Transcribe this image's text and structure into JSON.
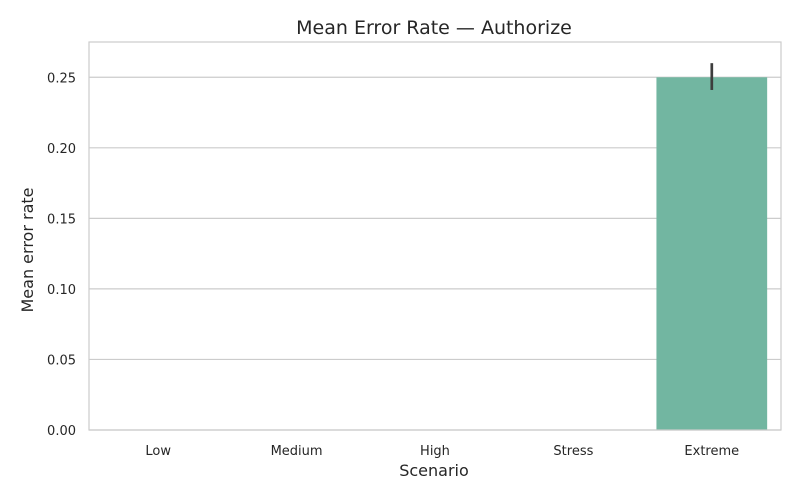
{
  "chart_data": {
    "type": "bar",
    "title": "Mean Error Rate — Authorize",
    "xlabel": "Scenario",
    "ylabel": "Mean error rate",
    "categories": [
      "Low",
      "Medium",
      "High",
      "Stress",
      "Extreme"
    ],
    "values": [
      0,
      0,
      0,
      0,
      0.25
    ],
    "error_bars": [
      null,
      null,
      null,
      null,
      {
        "low": 0.241,
        "high": 0.26
      }
    ],
    "ylim": [
      0,
      0.275
    ],
    "yticks": [
      "0.00",
      "0.05",
      "0.10",
      "0.15",
      "0.20",
      "0.25"
    ],
    "grid": "horizontal",
    "colors": {
      "bar": "#72b6a1",
      "error_bar": "#3d3d3d",
      "grid": "#cccccc",
      "frame": "#cccccc"
    }
  }
}
